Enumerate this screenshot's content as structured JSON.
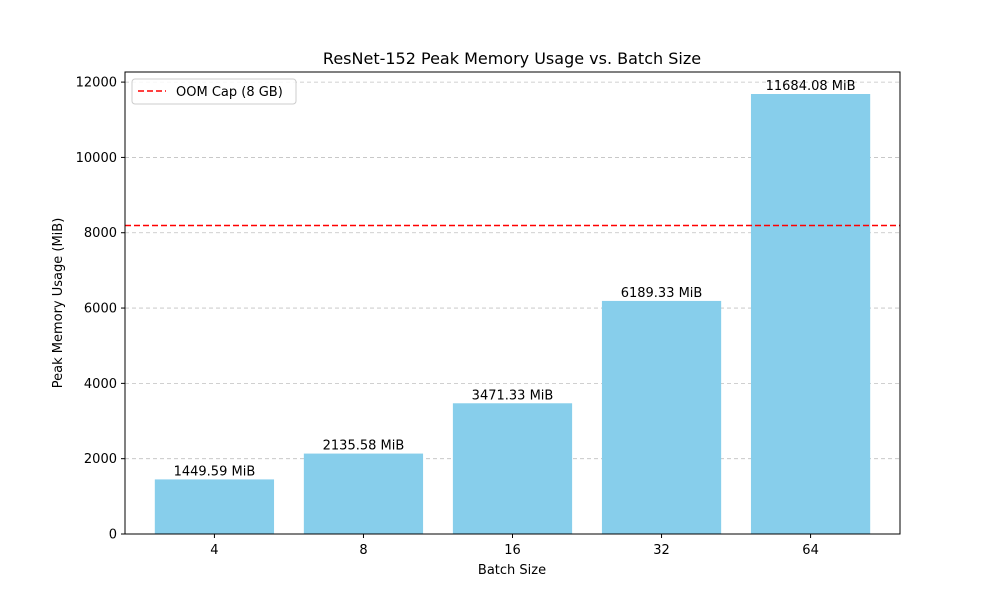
{
  "chart_data": {
    "type": "bar",
    "title": "ResNet-152 Peak Memory Usage vs. Batch Size",
    "xlabel": "Batch Size",
    "ylabel": "Peak Memory Usage (MiB)",
    "categories": [
      "4",
      "8",
      "16",
      "32",
      "64"
    ],
    "values": [
      1449.59,
      2135.58,
      3471.33,
      6189.33,
      11684.08
    ],
    "data_labels": [
      "1449.59 MiB",
      "2135.58 MiB",
      "3471.33 MiB",
      "6189.33 MiB",
      "11684.08 MiB"
    ],
    "yticks": [
      0,
      2000,
      4000,
      6000,
      8000,
      10000,
      12000
    ],
    "ylim": [
      0,
      12268.28
    ],
    "grid": "y-dashed",
    "bar_color": "#87ceeb",
    "reference_line": {
      "label": "OOM Cap (8 GB)",
      "value": 8192,
      "color": "#ff0000",
      "style": "dashed"
    },
    "legend_position": "top-left"
  }
}
